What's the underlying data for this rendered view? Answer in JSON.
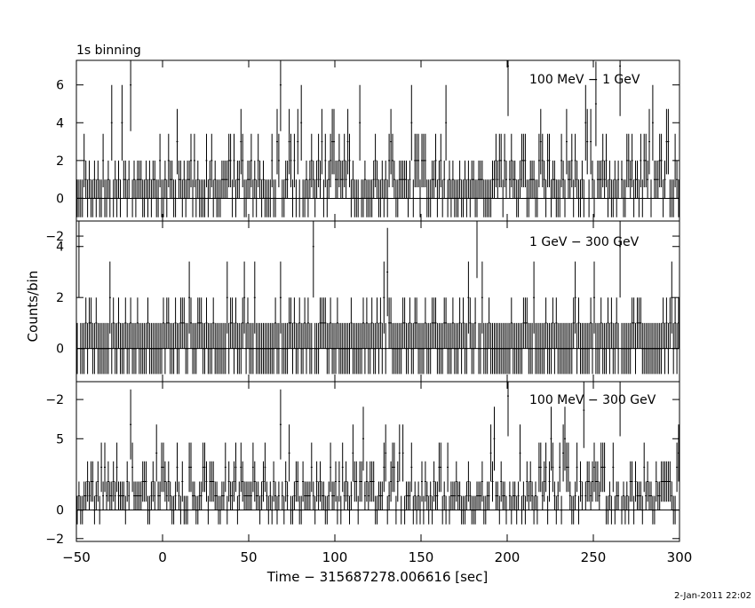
{
  "chart_data": [
    {
      "type": "line",
      "title": "1s binning",
      "series": [
        {
          "name": "100 MeV − 1 GeV"
        }
      ],
      "xlim": [
        -50,
        300
      ],
      "ylim": [
        -1.2,
        7.3
      ],
      "yticks": [
        -2,
        0,
        2,
        4,
        6
      ],
      "ytick_labels": [
        "−2",
        "0",
        "2",
        "4",
        "6"
      ],
      "peaks": [
        [
          -19,
          6
        ],
        [
          68,
          6
        ],
        [
          200,
          7
        ],
        [
          265,
          7
        ]
      ],
      "seed": 11
    },
    {
      "type": "line",
      "series": [
        {
          "name": "1 GeV − 300 GeV"
        }
      ],
      "xlim": [
        -50,
        300
      ],
      "ylim": [
        -1.3,
        5.0
      ],
      "yticks": [
        -2,
        0,
        2,
        4
      ],
      "ytick_labels": [
        "−2",
        "0",
        "2",
        "4"
      ],
      "peaks": [
        [
          -49,
          4
        ],
        [
          182,
          5
        ],
        [
          265,
          4
        ],
        [
          300,
          3
        ]
      ],
      "seed": 23
    },
    {
      "type": "line",
      "series": [
        {
          "name": "100 MeV − 300 GeV"
        }
      ],
      "xlim": [
        -50,
        300
      ],
      "ylim": [
        -2.2,
        9.0
      ],
      "yticks": [
        -2,
        0,
        5
      ],
      "ytick_labels": [
        "−2",
        "0",
        "5"
      ],
      "peaks": [
        [
          -19,
          6
        ],
        [
          68,
          6
        ],
        [
          200,
          8
        ],
        [
          244,
          7
        ],
        [
          265,
          8
        ]
      ],
      "seed": 37
    }
  ],
  "x_tick_labels": [
    "−50",
    "0",
    "50",
    "100",
    "150",
    "200",
    "250",
    "300"
  ],
  "x_tick_values": [
    -50,
    0,
    50,
    100,
    150,
    200,
    250,
    300
  ],
  "xlabel": "Time − 315687278.006616 [sec]",
  "ylabel": "Counts/bin",
  "footer": "2-Jan-2011 22:02",
  "colors": {
    "line": "#000000",
    "background": "#ffffff"
  }
}
